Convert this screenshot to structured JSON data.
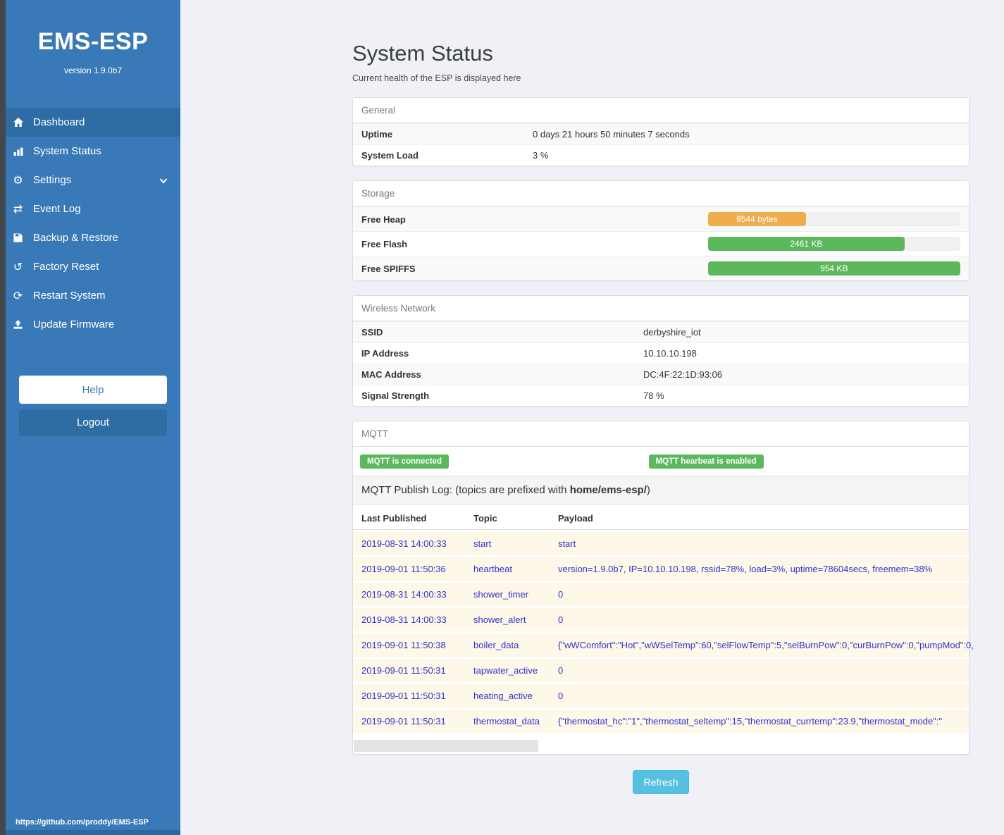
{
  "colors": {
    "sidebar_blue": "#3a79b7",
    "sidebar_active_blue": "#2e6ca6",
    "logout_blue": "#2e6da4",
    "success_green": "#5cb85c",
    "warning_orange": "#f0ad4e",
    "refresh_cyan": "#56c0e0",
    "log_link_blue": "#3232cd",
    "log_row_cream": "#fdf8e8",
    "page_background": "#f0f1f6"
  },
  "sidebar": {
    "title": "EMS-ESP",
    "version": "version 1.9.0b7",
    "items": [
      {
        "label": "Dashboard",
        "icon": "home-icon"
      },
      {
        "label": "System Status",
        "icon": "chart-icon"
      },
      {
        "label": "Settings",
        "icon": "gear-icon"
      },
      {
        "label": "Event Log",
        "icon": "exchange-icon"
      },
      {
        "label": "Backup & Restore",
        "icon": "save-icon"
      },
      {
        "label": "Factory Reset",
        "icon": "rotate-ccw-icon"
      },
      {
        "label": "Restart System",
        "icon": "refresh-icon"
      },
      {
        "label": "Update Firmware",
        "icon": "upload-icon"
      }
    ],
    "help_label": "Help",
    "logout_label": "Logout",
    "footer_url": "https://github.com/proddy/EMS-ESP"
  },
  "header": {
    "title": "System Status",
    "subtitle": "Current health of the ESP is displayed here"
  },
  "panels": {
    "general": {
      "title": "General",
      "rows": [
        {
          "label": "Uptime",
          "value": "0 days 21 hours 50 minutes 7 seconds"
        },
        {
          "label": "System Load",
          "value": "3 %"
        }
      ]
    },
    "storage": {
      "title": "Storage",
      "rows": [
        {
          "label": "Free Heap",
          "bar_label": "9544 bytes",
          "percent": 39,
          "color": "#f0ad4e"
        },
        {
          "label": "Free Flash",
          "bar_label": "2461 KB",
          "percent": 78,
          "color": "#5cb85c"
        },
        {
          "label": "Free SPIFFS",
          "bar_label": "954 KB",
          "percent": 100,
          "color": "#5cb85c"
        }
      ]
    },
    "wireless": {
      "title": "Wireless Network",
      "rows": [
        {
          "label": "SSID",
          "value": "derbyshire_iot"
        },
        {
          "label": "IP Address",
          "value": "10.10.10.198"
        },
        {
          "label": "MAC Address",
          "value": "DC:4F:22:1D:93:06"
        },
        {
          "label": "Signal Strength",
          "value": "78 %"
        }
      ]
    },
    "mqtt": {
      "title": "MQTT",
      "badges": [
        "MQTT is connected",
        "MQTT hearbeat is enabled"
      ],
      "publish_log": {
        "prefix": "MQTT Publish Log: (topics are prefixed with ",
        "bold": "home/ems-esp/",
        "suffix": ")"
      },
      "table": {
        "columns": [
          "Last Published",
          "Topic",
          "Payload"
        ],
        "rows": [
          {
            "time": "2019-08-31 14:00:33",
            "topic": "start",
            "payload": "start"
          },
          {
            "time": "2019-09-01 11:50:36",
            "topic": "heartbeat",
            "payload": "version=1.9.0b7, IP=10.10.10.198, rssid=78%, load=3%, uptime=78604secs, freemem=38%"
          },
          {
            "time": "2019-08-31 14:00:33",
            "topic": "shower_timer",
            "payload": "0"
          },
          {
            "time": "2019-08-31 14:00:33",
            "topic": "shower_alert",
            "payload": "0"
          },
          {
            "time": "2019-09-01 11:50:38",
            "topic": "boiler_data",
            "payload": "{\"wWComfort\":\"Hot\",\"wWSelTemp\":60,\"selFlowTemp\":5,\"selBurnPow\":0,\"curBurnPow\":0,\"pumpMod\":0,"
          },
          {
            "time": "2019-09-01 11:50:31",
            "topic": "tapwater_active",
            "payload": "0"
          },
          {
            "time": "2019-09-01 11:50:31",
            "topic": "heating_active",
            "payload": "0"
          },
          {
            "time": "2019-09-01 11:50:31",
            "topic": "thermostat_data",
            "payload": "{\"thermostat_hc\":\"1\",\"thermostat_seltemp\":15,\"thermostat_currtemp\":23.9,\"thermostat_mode\":\""
          }
        ]
      },
      "refresh_label": "Refresh"
    }
  }
}
